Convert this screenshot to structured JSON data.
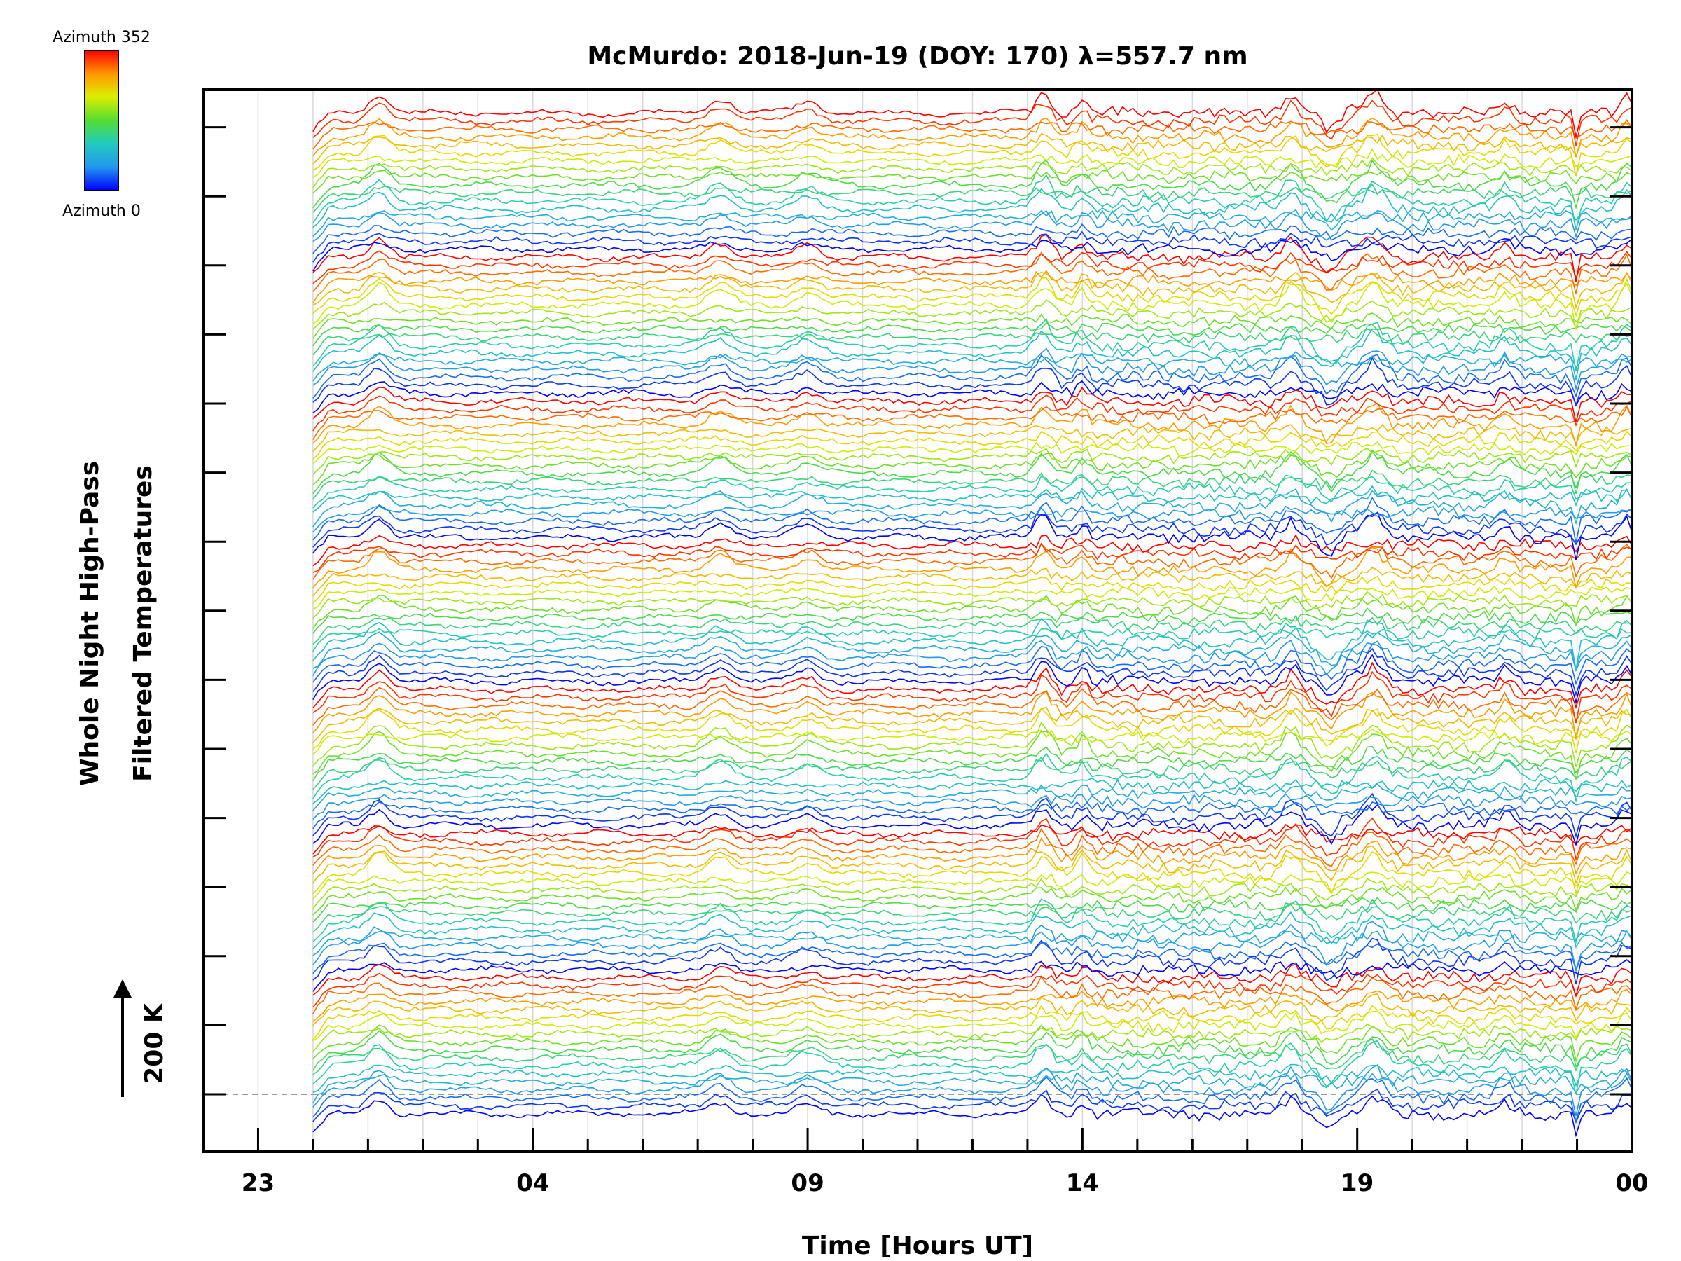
{
  "chart_data": {
    "type": "line",
    "title": "McMurdo: 2018-Jun-19 (DOY: 170) λ=557.7 nm",
    "xlabel": "Time [Hours UT]",
    "ylabel_line1": "Whole Night High-Pass",
    "ylabel_line2": "Filtered Temperatures",
    "scale_label": "200 K",
    "x_tick_labels": [
      "23",
      "04",
      "09",
      "14",
      "19",
      "00"
    ],
    "x_tick_hours": [
      23,
      28,
      33,
      38,
      43,
      48
    ],
    "xlim_hours": [
      22,
      48
    ],
    "data_start_hour": 24,
    "colorbar": {
      "top_label": "Azimuth 352",
      "bottom_label": "Azimuth 0",
      "colors": [
        "#ff0000",
        "#ff9900",
        "#ddee00",
        "#55dd33",
        "#22ccbb",
        "#2299ee",
        "#0000ff"
      ]
    },
    "grid": "vertical",
    "stacked_panels": 7,
    "series_per_panel": 18,
    "series_colormap": "azimuth 0 (blue) to 352 (red)"
  }
}
